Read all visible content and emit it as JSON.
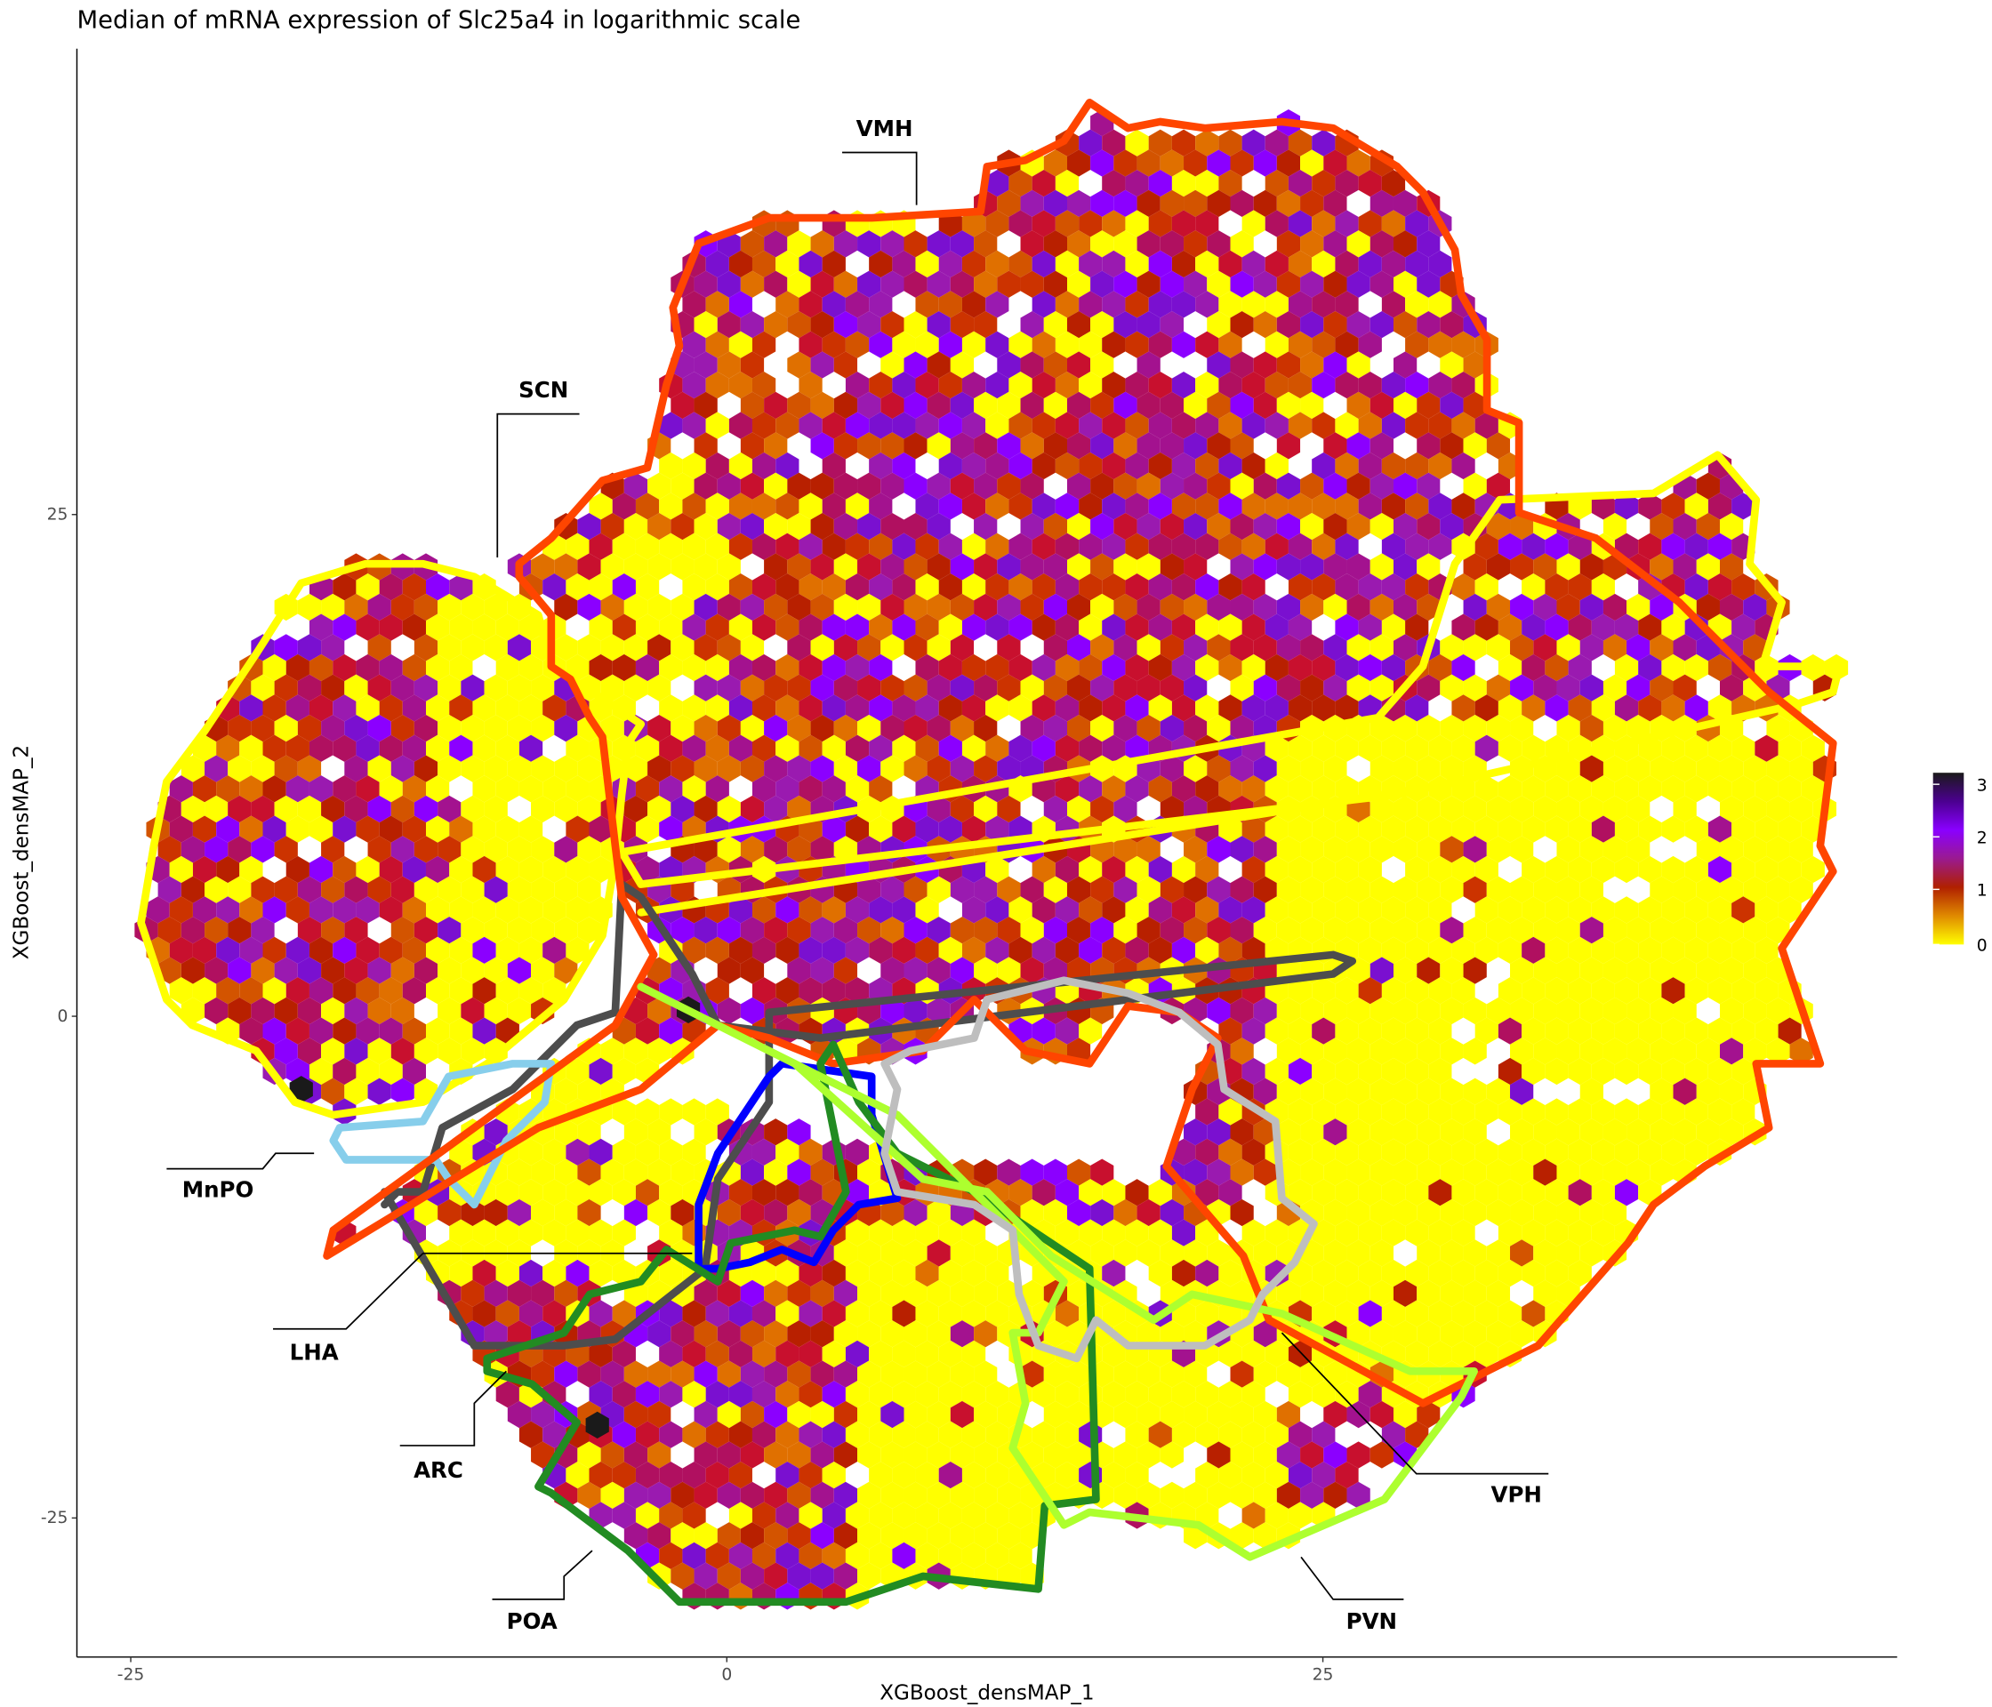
{
  "chart_data": {
    "type": "heatmap",
    "subtype": "hexbin",
    "title": "Median of mRNA expression of Slc25a4 in logarithmic scale",
    "xlabel": "XGBoost_densMAP_1",
    "ylabel": "XGBoost_densMAP_2",
    "xticks": [
      "-25",
      "0",
      "25"
    ],
    "yticks": [
      "25",
      "0",
      "-25"
    ],
    "xlim": [
      -27,
      49
    ],
    "ylim": [
      -32,
      48
    ],
    "grid": false,
    "legend": {
      "placement": "right",
      "ticks": [
        "3",
        "2",
        "1",
        "0"
      ],
      "range": [
        0,
        3.2
      ],
      "colors": [
        "#ffff00",
        "#e08a00",
        "#b02000",
        "#9a1a90",
        "#8a00ff",
        "#4b0090",
        "#1a1a1a"
      ]
    },
    "regions": [
      {
        "name": "VMH",
        "color": "#ff4500"
      },
      {
        "name": "SCN",
        "color": "#ffff00"
      },
      {
        "name": "MnPO",
        "color": "#87ceeb"
      },
      {
        "name": "LHA",
        "color": "#4d4d4d"
      },
      {
        "name": "ARC",
        "color": "#0000ff"
      },
      {
        "name": "POA",
        "color": "#228b22"
      },
      {
        "name": "PVN",
        "color": "#adff2f"
      },
      {
        "name": "VPH",
        "color": "#bebebe"
      }
    ]
  }
}
